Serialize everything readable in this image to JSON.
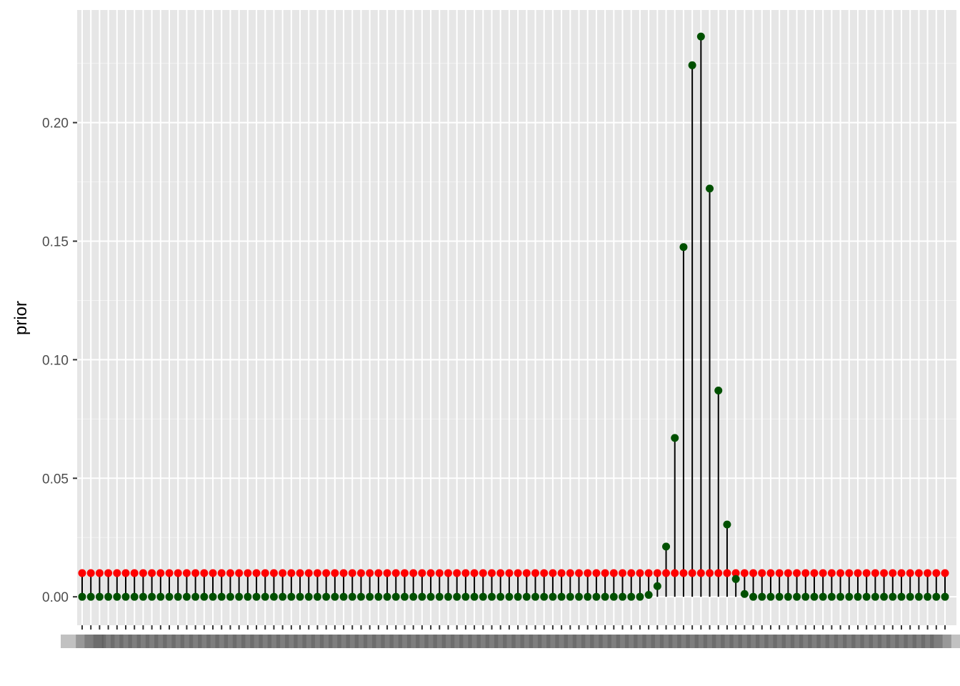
{
  "chart_data": {
    "type": "lollipop",
    "title": "",
    "xlabel": "",
    "ylabel": "prior",
    "ylim": [
      -0.012,
      0.2475
    ],
    "y_ticks": [
      0.0,
      0.05,
      0.1,
      0.15,
      0.2
    ],
    "y_tick_labels": [
      "0.00",
      "0.05",
      "0.10",
      "0.15",
      "0.20"
    ],
    "grid": true,
    "panel_background": "#e6e6e6",
    "x_tick_labels_note": "illegible overlapping x tick labels, one per point",
    "n_points": 100,
    "series": [
      {
        "name": "",
        "color": "#ff0000",
        "values": [
          0.01,
          0.01,
          0.01,
          0.01,
          0.01,
          0.01,
          0.01,
          0.01,
          0.01,
          0.01,
          0.01,
          0.01,
          0.01,
          0.01,
          0.01,
          0.01,
          0.01,
          0.01,
          0.01,
          0.01,
          0.01,
          0.01,
          0.01,
          0.01,
          0.01,
          0.01,
          0.01,
          0.01,
          0.01,
          0.01,
          0.01,
          0.01,
          0.01,
          0.01,
          0.01,
          0.01,
          0.01,
          0.01,
          0.01,
          0.01,
          0.01,
          0.01,
          0.01,
          0.01,
          0.01,
          0.01,
          0.01,
          0.01,
          0.01,
          0.01,
          0.01,
          0.01,
          0.01,
          0.01,
          0.01,
          0.01,
          0.01,
          0.01,
          0.01,
          0.01,
          0.01,
          0.01,
          0.01,
          0.01,
          0.01,
          0.01,
          0.01,
          0.01,
          0.01,
          0.01,
          0.01,
          0.01,
          0.01,
          0.01,
          0.01,
          0.01,
          0.01,
          0.01,
          0.01,
          0.01,
          0.01,
          0.01,
          0.01,
          0.01,
          0.01,
          0.01,
          0.01,
          0.01,
          0.01,
          0.01,
          0.01,
          0.01,
          0.01,
          0.01,
          0.01,
          0.01,
          0.01,
          0.01,
          0.01,
          0.01
        ]
      },
      {
        "name": "",
        "color": "#005000",
        "values": [
          0,
          0,
          0,
          0,
          0,
          0,
          0,
          0,
          0,
          0,
          0,
          0,
          0,
          0,
          0,
          0,
          0,
          0,
          0,
          0,
          0,
          0,
          0,
          0,
          0,
          0,
          0,
          0,
          0,
          0,
          0,
          0,
          0,
          0,
          0,
          0,
          0,
          0,
          0,
          0,
          0,
          0,
          0,
          0,
          0,
          0,
          0,
          0,
          0,
          0,
          0,
          0,
          0,
          0,
          0,
          0,
          0,
          0,
          0,
          0,
          0,
          0,
          0,
          0,
          0,
          0.0008,
          0.0045,
          0.0212,
          0.067,
          0.1475,
          0.2242,
          0.2363,
          0.1722,
          0.087,
          0.0305,
          0.0075,
          0.0012,
          0,
          0,
          0,
          0,
          0,
          0,
          0,
          0,
          0,
          0,
          0,
          0,
          0,
          0,
          0,
          0,
          0,
          0,
          0,
          0,
          0,
          0,
          0
        ]
      }
    ]
  }
}
